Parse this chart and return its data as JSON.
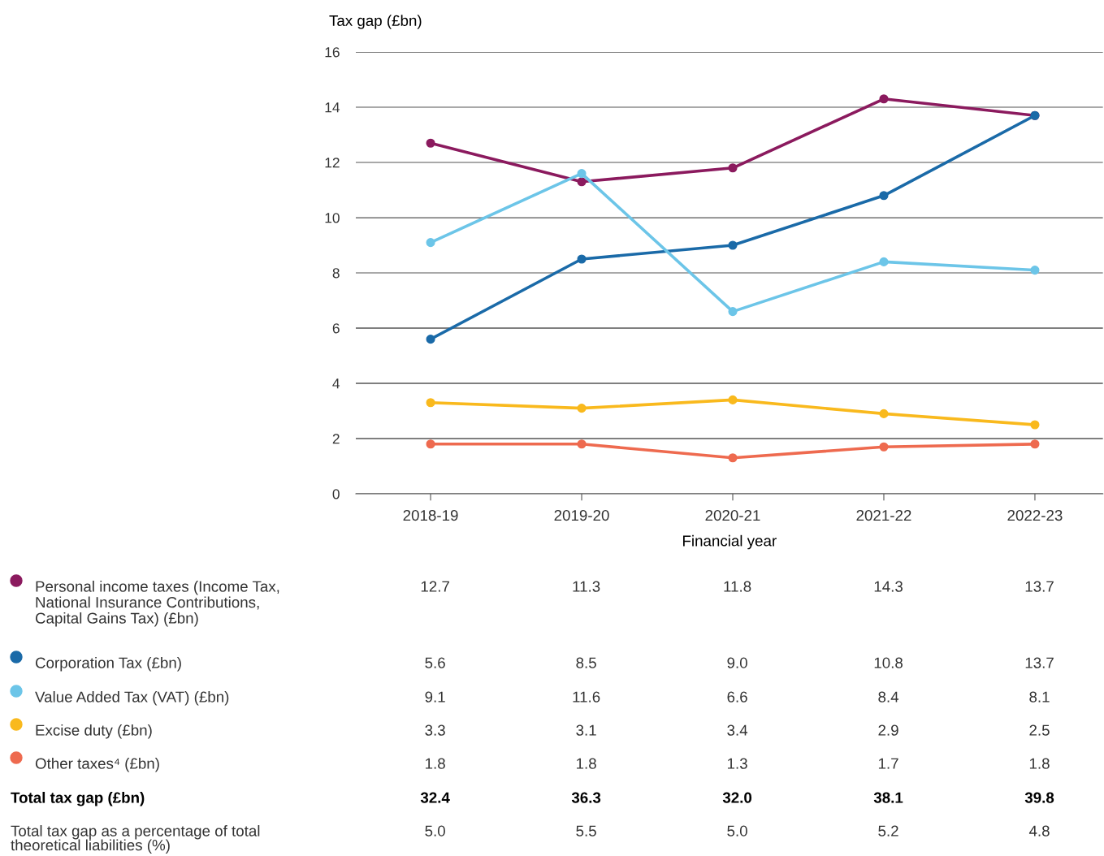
{
  "chart_data": {
    "type": "line",
    "ylabel": "Tax gap (£bn)",
    "xlabel": "Financial year",
    "categories": [
      "2018-19",
      "2019-20",
      "2020-21",
      "2021-22",
      "2022-23"
    ],
    "series": [
      {
        "name": "Personal income taxes (Income Tax,\nNational Insurance Contributions,\nCapital Gains Tax) (£bn)",
        "color": "#8b1a5e",
        "values": [
          12.7,
          11.3,
          11.8,
          14.3,
          13.7
        ],
        "value_labels": [
          "12.7",
          "11.3",
          "11.8",
          "14.3",
          "13.7"
        ]
      },
      {
        "name": "Corporation Tax (£bn)",
        "color": "#1a6aa8",
        "values": [
          5.6,
          8.5,
          9.0,
          10.8,
          13.7
        ],
        "value_labels": [
          "5.6",
          "8.5",
          "9.0",
          "10.8",
          "13.7"
        ]
      },
      {
        "name": "Value Added Tax (VAT) (£bn)",
        "color": "#6cc5e8",
        "values": [
          9.1,
          11.6,
          6.6,
          8.4,
          8.1
        ],
        "value_labels": [
          "9.1",
          "11.6",
          "6.6",
          "8.4",
          "8.1"
        ]
      },
      {
        "name": "Excise duty (£bn)",
        "color": "#f9b91d",
        "values": [
          3.3,
          3.1,
          3.4,
          2.9,
          2.5
        ],
        "value_labels": [
          "3.3",
          "3.1",
          "3.4",
          "2.9",
          "2.5"
        ]
      },
      {
        "name": "Other taxes⁴ (£bn)",
        "color": "#ee6a4f",
        "values": [
          1.8,
          1.8,
          1.3,
          1.7,
          1.8
        ],
        "value_labels": [
          "1.8",
          "1.8",
          "1.3",
          "1.7",
          "1.8"
        ]
      }
    ],
    "totals": [
      "32.4",
      "36.3",
      "32.0",
      "38.1",
      "39.8"
    ],
    "annotations": [
      "Total tax gap (£bn)",
      "Total tax gap as a percentage of total\ntheoretical liabilities (%)",
      "5.0",
      "5.5",
      "5.0",
      "5.2",
      "4.8"
    ],
    "ylim": [
      0,
      16
    ],
    "yticks": [
      0,
      2,
      4,
      6,
      8,
      10,
      12,
      14,
      16
    ],
    "grid": "y",
    "legend": "bottom",
    "marker": "circle",
    "line_style": "solid"
  }
}
